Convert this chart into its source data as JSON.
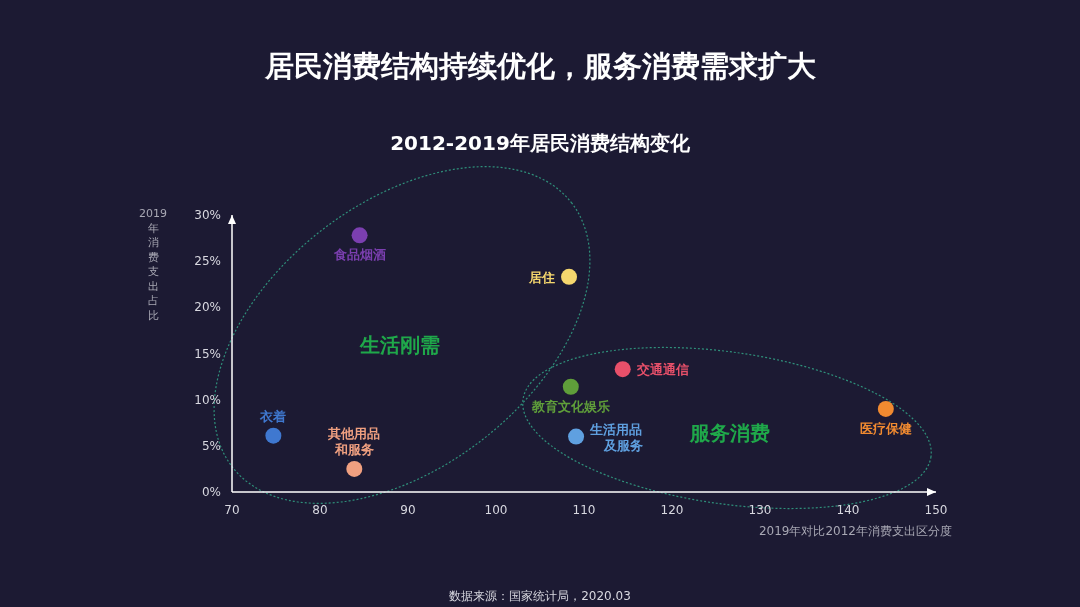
{
  "chart_data": {
    "type": "scatter",
    "title": "居民消费结构持续优化，服务消费需求扩大",
    "subtitle": "2012-2019年居民消费结构变化",
    "xlabel": "2019年对比2012年消费支出区分度",
    "ylabel": "2019年消费支出占比",
    "xlim": [
      70,
      150
    ],
    "ylim": [
      0,
      30
    ],
    "xticks": [
      70,
      80,
      90,
      100,
      110,
      120,
      130,
      140,
      150
    ],
    "yticks": [
      {
        "value": 0,
        "label": "0%"
      },
      {
        "value": 5,
        "label": "5%"
      },
      {
        "value": 10,
        "label": "10%"
      },
      {
        "value": 15,
        "label": "15%"
      },
      {
        "value": 20,
        "label": "20%"
      },
      {
        "value": 25,
        "label": "25%"
      },
      {
        "value": 30,
        "label": "30%"
      }
    ],
    "marker": "circle",
    "grid": false,
    "series": [
      {
        "name": "食品烟酒",
        "color": "#7b3fb0",
        "x": [
          84.5
        ],
        "values": [
          27.8
        ]
      },
      {
        "name": "居住",
        "color": "#f5d76e",
        "x": [
          108.3
        ],
        "values": [
          23.3
        ]
      },
      {
        "name": "衣着",
        "color": "#3f78d0",
        "x": [
          74.7
        ],
        "values": [
          6.1
        ]
      },
      {
        "name": "其他用品和服务",
        "color": "#f0a080",
        "x": [
          83.9
        ],
        "values": [
          2.5
        ]
      },
      {
        "name": "教育文化娱乐",
        "color": "#5f9e3a",
        "x": [
          108.5
        ],
        "values": [
          11.4
        ]
      },
      {
        "name": "交通通信",
        "color": "#e8506a",
        "x": [
          114.4
        ],
        "values": [
          13.3
        ]
      },
      {
        "name": "生活用品及服务",
        "color": "#5fa0e0",
        "x": [
          109.1
        ],
        "values": [
          6.0
        ]
      },
      {
        "name": "医疗保健",
        "color": "#f08a30",
        "x": [
          144.3
        ],
        "values": [
          9.0
        ]
      }
    ],
    "annotations": [
      "生活刚需",
      "服务消费",
      "数据来源：国家统计局，2020.03"
    ]
  }
}
